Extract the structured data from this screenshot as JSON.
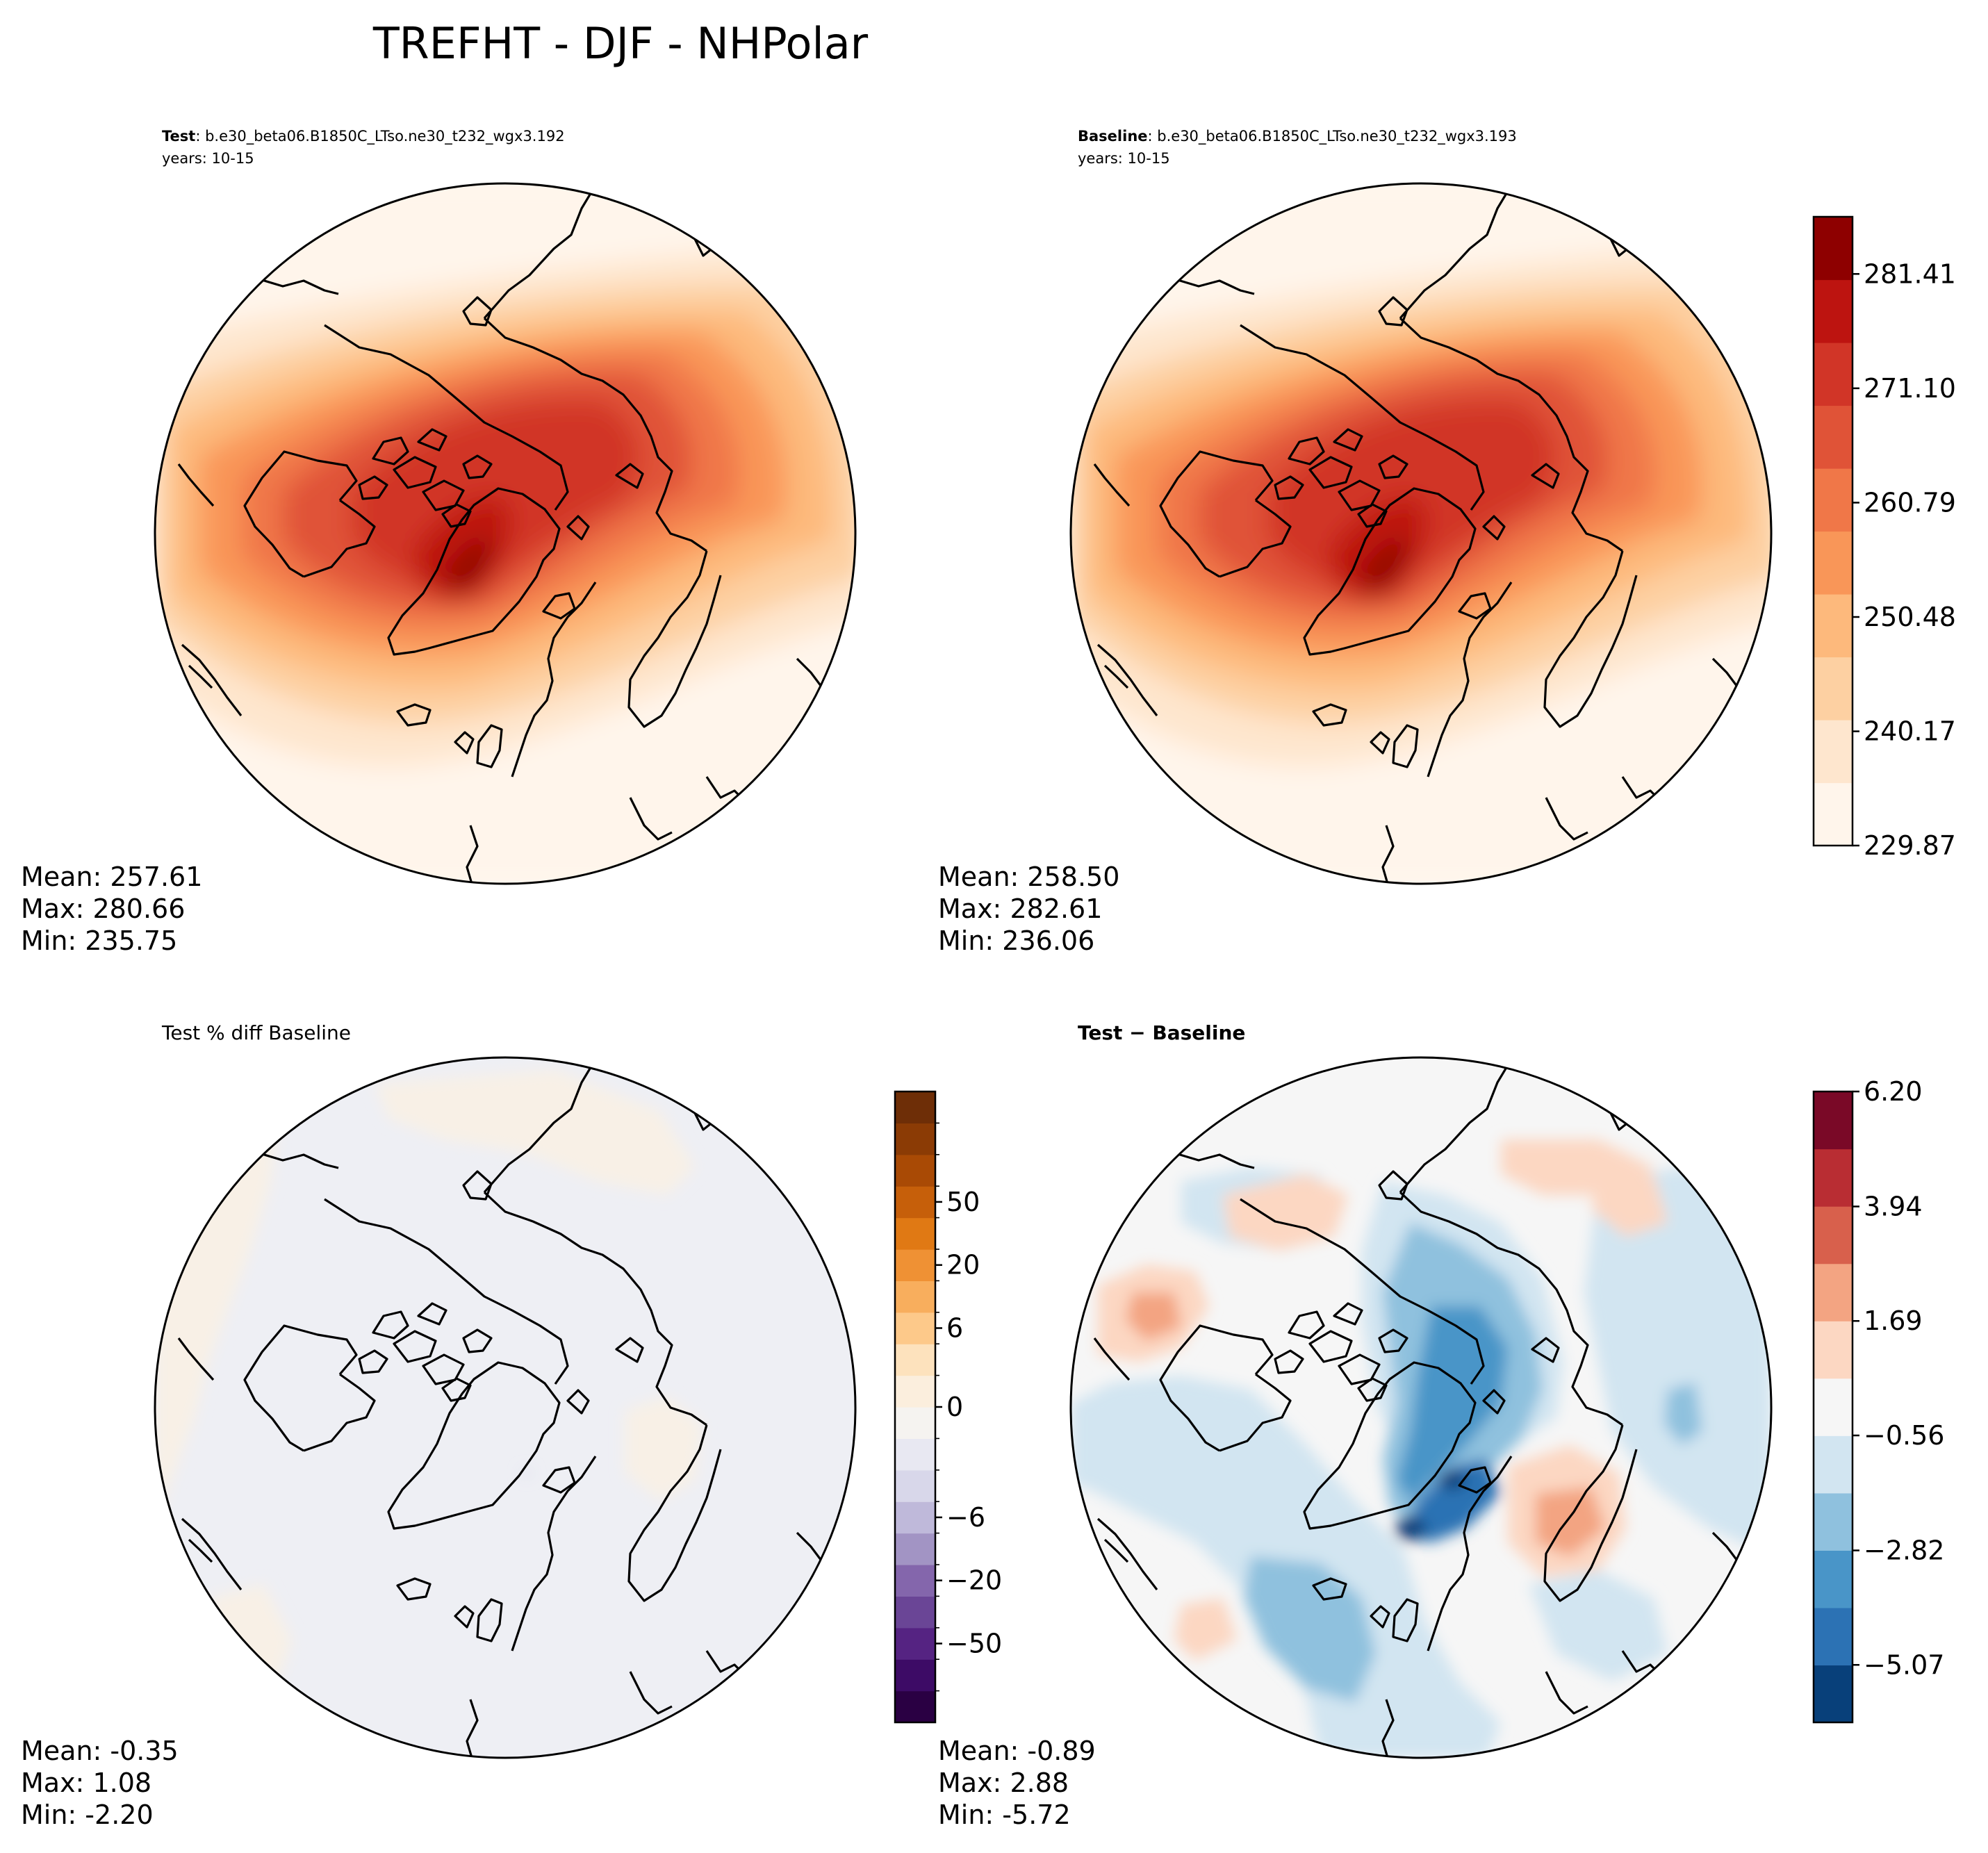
{
  "figure_title": "TREFHT - DJF - NHPolar",
  "panels": {
    "test": {
      "case_label": "Test",
      "case_name": ": b.e30_beta06.B1850C_LTso.ne30_t232_wgx3.192",
      "years": "years: 10-15",
      "stats": [
        "Mean: 257.61",
        "Max: 280.66",
        "Min: 235.75"
      ]
    },
    "baseline": {
      "case_label": "Baseline",
      "case_name": ": b.e30_beta06.B1850C_LTso.ne30_t232_wgx3.193",
      "years": "years: 10-15",
      "stats": [
        "Mean: 258.50",
        "Max: 282.61",
        "Min: 236.06"
      ]
    },
    "pct_diff": {
      "title": "Test % diff Baseline",
      "stats": [
        "Mean: -0.35",
        "Max:  1.08",
        "Min: -2.20"
      ]
    },
    "diff": {
      "title_a": "Test",
      "title_op": " − ",
      "title_b": "Baseline",
      "stats": [
        "Mean: -0.89",
        "Max:  2.88",
        "Min: -5.72"
      ]
    }
  },
  "colorbars": {
    "field": {
      "colors": [
        "#fff5eb",
        "#fee6ce",
        "#fdd0a2",
        "#fdb97c",
        "#f99658",
        "#f07748",
        "#e05337",
        "#d13527",
        "#bd1410",
        "#8e0000"
      ],
      "ticks": [
        229.87,
        240.17,
        250.48,
        260.79,
        271.1,
        281.41
      ],
      "tick_labels": [
        "229.87",
        "240.17",
        "250.48",
        "260.79",
        "271.10",
        "281.41"
      ],
      "min": 229.87,
      "max": 286.565
    },
    "pct": {
      "colors": [
        "#2a0043",
        "#3d0b66",
        "#552382",
        "#6a4596",
        "#8466ac",
        "#a294c4",
        "#bfb9da",
        "#d8d7ea",
        "#e8e8f2",
        "#f5f3f0",
        "#fbeedd",
        "#fde2bd",
        "#fdc98a",
        "#f8ae5d",
        "#ef9134",
        "#e07914",
        "#c65f0a",
        "#a94a05",
        "#8b3b05",
        "#6e2e07"
      ],
      "tick_values": [
        -50,
        -20,
        -6,
        0,
        6,
        20,
        50
      ],
      "tick_labels": [
        "−50",
        "−20",
        "−6",
        "0",
        "6",
        "20",
        "50"
      ]
    },
    "diff": {
      "colors": [
        "#08407a",
        "#2c72b4",
        "#4995c8",
        "#8fc1de",
        "#d2e5f1",
        "#f6f6f6",
        "#fcd7c2",
        "#f3a482",
        "#d8604c",
        "#b92d33",
        "#7a0927"
      ],
      "ticks": [
        -5.07,
        -2.82,
        -0.56,
        1.69,
        3.94,
        6.2
      ],
      "tick_labels": [
        "−5.07",
        "−2.82",
        "−0.56",
        "1.69",
        "3.94",
        "6.20"
      ],
      "min": -6.2,
      "max": 6.2
    }
  },
  "map_fields": {
    "field_levels_test": [
      9,
      8,
      7,
      6,
      5,
      4,
      3,
      2,
      1,
      0
    ],
    "field_levels_baseline": [
      9,
      8,
      7,
      6,
      5,
      4,
      3,
      2,
      1,
      0
    ]
  }
}
